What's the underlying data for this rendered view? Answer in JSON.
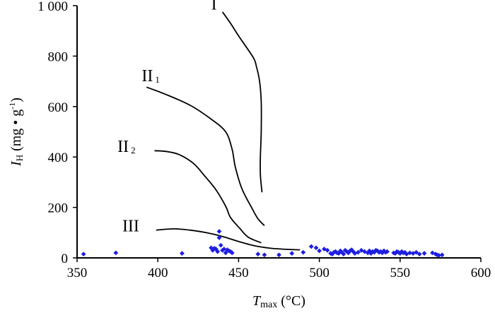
{
  "chart_data": {
    "type": "scatter",
    "xlim": [
      350,
      600
    ],
    "ylim": [
      0,
      1000
    ],
    "xticks": [
      350,
      400,
      450,
      500,
      550,
      600
    ],
    "xtick_labels": [
      "350",
      "400",
      "450",
      "500",
      "550",
      "600"
    ],
    "yticks": [
      0,
      200,
      400,
      600,
      800,
      1000
    ],
    "ytick_labels": [
      "0",
      "200",
      "400",
      "600",
      "800",
      "1 000"
    ],
    "xlabel": {
      "main": "T",
      "sub": "max",
      "rest": " (°C)"
    },
    "ylabel": {
      "main": "I",
      "sub": "H",
      "rest": " (mg • g",
      "sup": "-1",
      "close": ")"
    },
    "grid": false,
    "marker_color": "#1f1fe0",
    "curves": [
      {
        "label": "I",
        "sub": "",
        "label_at": [
          433,
          985
        ],
        "points": [
          [
            440,
            975
          ],
          [
            445,
            930
          ],
          [
            450,
            880
          ],
          [
            459,
            795
          ],
          [
            461,
            760
          ],
          [
            463,
            700
          ],
          [
            464,
            620
          ],
          [
            464,
            500
          ],
          [
            463.5,
            400
          ],
          [
            463.5,
            330
          ],
          [
            464.5,
            260
          ]
        ]
      },
      {
        "label": "II",
        "sub": "1",
        "label_at": [
          390,
          700
        ],
        "points": [
          [
            393,
            677
          ],
          [
            405,
            648
          ],
          [
            420,
            605
          ],
          [
            433,
            550
          ],
          [
            442,
            500
          ],
          [
            446,
            430
          ],
          [
            448,
            360
          ],
          [
            452,
            275
          ],
          [
            458,
            200
          ],
          [
            462,
            155
          ],
          [
            466,
            128
          ]
        ]
      },
      {
        "label": "II",
        "sub": "2",
        "label_at": [
          375,
          420
        ],
        "points": [
          [
            398,
            425
          ],
          [
            405,
            422
          ],
          [
            413,
            410
          ],
          [
            422,
            375
          ],
          [
            429,
            325
          ],
          [
            436,
            270
          ],
          [
            442,
            205
          ],
          [
            445,
            160
          ],
          [
            451,
            115
          ],
          [
            456,
            82
          ],
          [
            464,
            60
          ]
        ]
      },
      {
        "label": "III",
        "sub": "",
        "label_at": [
          378,
          105
        ],
        "points": [
          [
            399,
            110
          ],
          [
            410,
            115
          ],
          [
            420,
            110
          ],
          [
            430,
            100
          ],
          [
            440,
            85
          ],
          [
            450,
            65
          ],
          [
            460,
            48
          ],
          [
            470,
            38
          ],
          [
            480,
            34
          ],
          [
            488,
            32
          ]
        ]
      }
    ],
    "points": [
      [
        354,
        15
      ],
      [
        374,
        20
      ],
      [
        415,
        18
      ],
      [
        462,
        15
      ],
      [
        466,
        12
      ],
      [
        433,
        40
      ],
      [
        434,
        30
      ],
      [
        435,
        38
      ],
      [
        436,
        35
      ],
      [
        437,
        25
      ],
      [
        438,
        80
      ],
      [
        438,
        105
      ],
      [
        439,
        50
      ],
      [
        440,
        30
      ],
      [
        441,
        35
      ],
      [
        442,
        20
      ],
      [
        443,
        32
      ],
      [
        444,
        28
      ],
      [
        445,
        25
      ],
      [
        446,
        20
      ],
      [
        475,
        12
      ],
      [
        483,
        18
      ],
      [
        490,
        22
      ],
      [
        495,
        45
      ],
      [
        498,
        40
      ],
      [
        500,
        28
      ],
      [
        503,
        35
      ],
      [
        505,
        30
      ],
      [
        507,
        18
      ],
      [
        508,
        15
      ],
      [
        509,
        22
      ],
      [
        510,
        25
      ],
      [
        511,
        20
      ],
      [
        512,
        18
      ],
      [
        513,
        28
      ],
      [
        514,
        22
      ],
      [
        515,
        15
      ],
      [
        516,
        30
      ],
      [
        517,
        25
      ],
      [
        518,
        20
      ],
      [
        519,
        28
      ],
      [
        520,
        32
      ],
      [
        521,
        25
      ],
      [
        522,
        18
      ],
      [
        524,
        22
      ],
      [
        526,
        30
      ],
      [
        528,
        25
      ],
      [
        530,
        20
      ],
      [
        531,
        28
      ],
      [
        532,
        18
      ],
      [
        533,
        25
      ],
      [
        534,
        22
      ],
      [
        535,
        30
      ],
      [
        536,
        28
      ],
      [
        537,
        22
      ],
      [
        538,
        25
      ],
      [
        539,
        20
      ],
      [
        540,
        28
      ],
      [
        541,
        22
      ],
      [
        542,
        25
      ],
      [
        546,
        20
      ],
      [
        547,
        18
      ],
      [
        548,
        25
      ],
      [
        549,
        22
      ],
      [
        550,
        18
      ],
      [
        551,
        25
      ],
      [
        552,
        20
      ],
      [
        553,
        22
      ],
      [
        554,
        15
      ],
      [
        556,
        20
      ],
      [
        558,
        18
      ],
      [
        560,
        22
      ],
      [
        562,
        15
      ],
      [
        565,
        18
      ],
      [
        570,
        20
      ],
      [
        572,
        15
      ],
      [
        573,
        12
      ],
      [
        574,
        10
      ],
      [
        576,
        12
      ]
    ]
  }
}
